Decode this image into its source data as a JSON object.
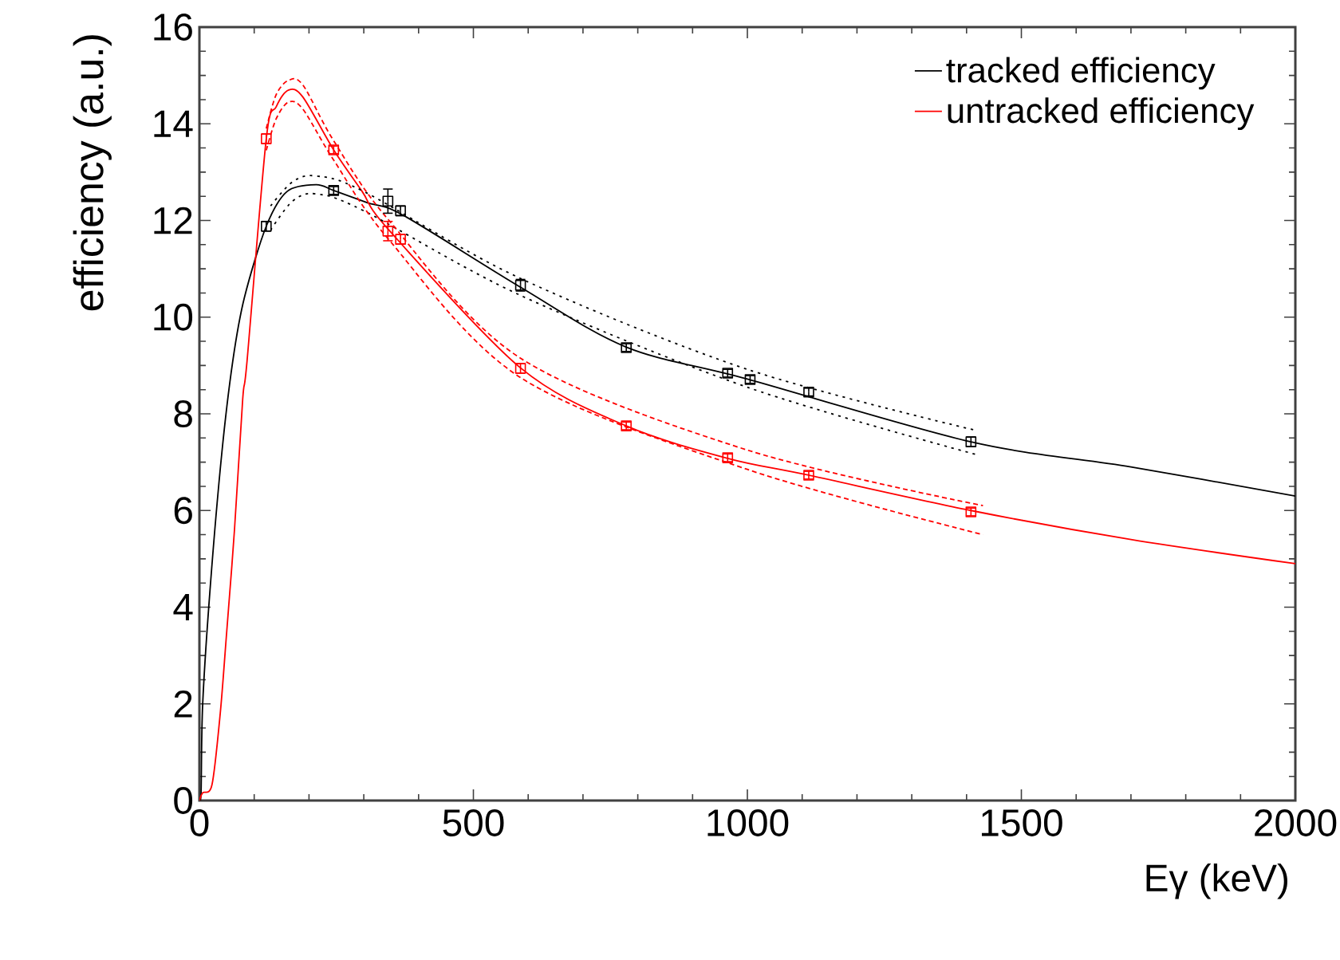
{
  "chart_data": {
    "type": "line",
    "xlabel": "Eγ (keV)",
    "ylabel": "efficiency (a.u.)",
    "xlim": [
      0,
      2000
    ],
    "xticks": [
      0,
      500,
      1000,
      1500,
      2000
    ],
    "ylim": [
      0,
      16
    ],
    "yticks": [
      0,
      2,
      4,
      6,
      8,
      10,
      12,
      14,
      16
    ],
    "grid": false,
    "legend": "top right",
    "series": [
      {
        "name": "tracked efficiency",
        "color": "#000000",
        "marker": "none",
        "line_style": "solid",
        "x": [
          0,
          3,
          6,
          20,
          41,
          61,
          82,
          122,
          160,
          213,
          245,
          306,
          373,
          586,
          779,
          1000,
          1408,
          1700,
          2000
        ],
        "values": [
          0,
          0.16,
          2.0,
          4.45,
          7.2,
          9.1,
          10.4,
          11.88,
          12.6,
          12.74,
          12.62,
          12.37,
          12.1,
          10.62,
          9.38,
          8.72,
          7.42,
          6.9,
          6.3
        ]
      },
      {
        "name": "untracked efficiency",
        "color": "#ff0000",
        "marker": "none",
        "line_style": "solid",
        "x": [
          0,
          6,
          23,
          38,
          49,
          64,
          79,
          87,
          122,
          140,
          163,
          189,
          245,
          297,
          346,
          586,
          779,
          964,
          1112,
          1408,
          1700,
          2000
        ],
        "values": [
          0,
          0.16,
          0.33,
          1.8,
          3.37,
          5.6,
          8.3,
          9.1,
          13.69,
          14.35,
          14.7,
          14.55,
          13.46,
          12.6,
          11.8,
          8.95,
          7.75,
          7.08,
          6.73,
          6.0,
          5.4,
          4.9
        ]
      },
      {
        "color": "#000000",
        "marker": "none",
        "line_style": "dotted",
        "x": [
          130,
          170,
          213,
          300,
          586,
          1000,
          1420
        ],
        "values": [
          12.3,
          12.8,
          12.92,
          12.6,
          10.8,
          8.92,
          7.65
        ]
      },
      {
        "color": "#000000",
        "marker": "none",
        "line_style": "dotted",
        "x": [
          130,
          170,
          213,
          300,
          586,
          1000,
          1420
        ],
        "values": [
          11.8,
          12.4,
          12.55,
          12.2,
          10.45,
          8.55,
          7.15
        ]
      },
      {
        "color": "#ff0000",
        "marker": "none",
        "line_style": "dashed",
        "x": [
          122,
          140,
          163,
          189,
          245,
          346,
          586,
          1000,
          1430
        ],
        "values": [
          13.9,
          14.6,
          14.9,
          14.8,
          13.65,
          12.0,
          9.15,
          7.25,
          6.1
        ]
      },
      {
        "color": "#ff0000",
        "marker": "none",
        "line_style": "dashed",
        "x": [
          122,
          140,
          163,
          189,
          245,
          346,
          586,
          1000,
          1430
        ],
        "values": [
          13.45,
          14.1,
          14.45,
          14.3,
          13.25,
          11.6,
          8.75,
          6.85,
          5.5
        ]
      },
      {
        "type": "scatter",
        "color": "#000000",
        "marker": "square",
        "x": [
          122,
          245,
          344,
          367,
          586,
          779,
          964,
          1005,
          1112,
          1408
        ],
        "values": [
          11.88,
          12.62,
          12.4,
          12.2,
          10.66,
          9.37,
          8.84,
          8.71,
          8.45,
          7.42
        ],
        "errors": [
          0.1,
          0.08,
          0.25,
          0.1,
          0.12,
          0.08,
          0.08,
          0.08,
          0.08,
          0.1
        ]
      },
      {
        "type": "scatter",
        "color": "#ff0000",
        "marker": "square",
        "x": [
          122,
          245,
          344,
          367,
          586,
          779,
          964,
          1112,
          1408
        ],
        "values": [
          13.69,
          13.46,
          11.78,
          11.61,
          8.94,
          7.75,
          7.09,
          6.73,
          5.97
        ],
        "errors": [
          0.1,
          0.08,
          0.2,
          0.1,
          0.1,
          0.08,
          0.08,
          0.08,
          0.08
        ]
      }
    ]
  }
}
